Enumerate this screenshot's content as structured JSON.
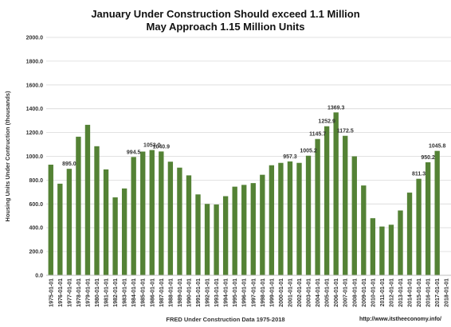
{
  "chart_data": {
    "type": "bar",
    "title": [
      "January  Under Construction Should exceed 1.1 Million",
      "May Approach 1.15 Million Units"
    ],
    "xlabel": "FRED Under Construction Data 1975-2018",
    "ylabel": "Housing Units Under Contruction (thousands)",
    "source_url": "http://www.itstheeconomy.info/",
    "ylim": [
      0,
      2000
    ],
    "y_ticks": [
      0,
      200,
      400,
      600,
      800,
      1000,
      1200,
      1400,
      1600,
      1800,
      2000
    ],
    "y_tick_labels": [
      "0.0",
      "200.0",
      "400.0",
      "600.0",
      "800.0",
      "1000.0",
      "1200.0",
      "1400.0",
      "1600.0",
      "1800.0",
      "2000.0"
    ],
    "grid": true,
    "legend": "none",
    "bar_color": "#548235",
    "categories": [
      "1975-01-01",
      "1976-01-01",
      "1977-01-01",
      "1978-01-01",
      "1979-01-01",
      "1980-01-01",
      "1981-01-01",
      "1982-01-01",
      "1983-01-01",
      "1984-01-01",
      "1985-01-01",
      "1986-01-01",
      "1987-01-01",
      "1988-01-01",
      "1989-01-01",
      "1990-01-01",
      "1991-01-01",
      "1992-01-01",
      "1993-01-01",
      "1994-01-01",
      "1995-01-01",
      "1996-01-01",
      "1997-01-01",
      "1998-01-01",
      "1999-01-01",
      "2000-01-01",
      "2001-01-01",
      "2002-01-01",
      "2003-01-01",
      "2004-01-01",
      "2005-01-01",
      "2006-01-01",
      "2007-01-01",
      "2008-01-01",
      "2009-01-01",
      "2010-01-01",
      "2011-01-01",
      "2012-01-01",
      "2013-01-01",
      "2014-01-01",
      "2015-01-01",
      "2016-01-01",
      "2017-01-01",
      "2018-01-01"
    ],
    "values": [
      930,
      770,
      895.0,
      1165,
      1265,
      1085,
      890,
      655,
      730,
      994.5,
      1040,
      1053.0,
      1040.9,
      955,
      905,
      840,
      680,
      600,
      595,
      665,
      745,
      760,
      775,
      845,
      925,
      945,
      957.3,
      945,
      1005.2,
      1145.7,
      1252.9,
      1369.3,
      1172.5,
      1000,
      755,
      480,
      410,
      425,
      545,
      695,
      811.3,
      950.2,
      1045.8,
      null
    ],
    "data_labels": [
      {
        "index": 2,
        "text": "895.0"
      },
      {
        "index": 9,
        "text": "994.5"
      },
      {
        "index": 11,
        "text": "1053.0"
      },
      {
        "index": 12,
        "text": "1040.9"
      },
      {
        "index": 26,
        "text": "957.3"
      },
      {
        "index": 28,
        "text": "1005.2"
      },
      {
        "index": 29,
        "text": "1145.7"
      },
      {
        "index": 30,
        "text": "1252.9"
      },
      {
        "index": 31,
        "text": "1369.3"
      },
      {
        "index": 32,
        "text": "1172.5"
      },
      {
        "index": 40,
        "text": "811.3"
      },
      {
        "index": 41,
        "text": "950.2"
      },
      {
        "index": 42,
        "text": "1045.8"
      }
    ]
  }
}
